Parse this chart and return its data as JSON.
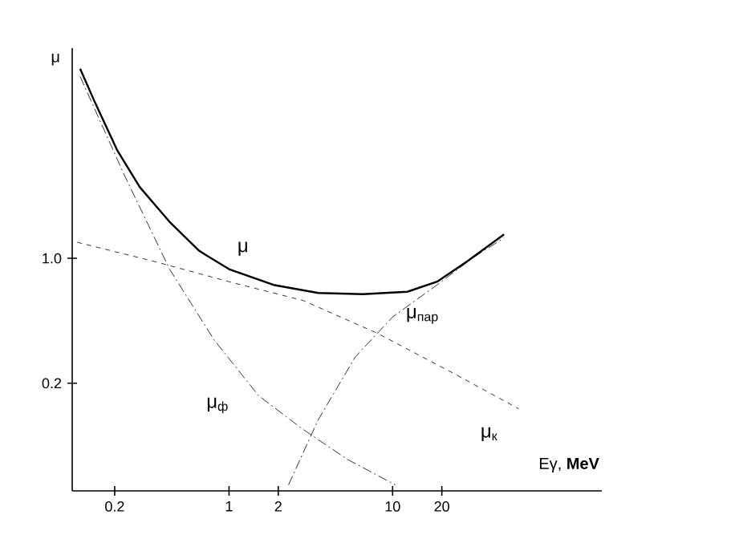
{
  "chart_data": {
    "type": "line",
    "xlabel": "Eγ, **MeV**",
    "ylabel": "μ",
    "log": "xy",
    "xlim": [
      0.11,
      190
    ],
    "ylim": [
      0.05,
      15
    ],
    "xticks": [
      0.2,
      1,
      2,
      10,
      20
    ],
    "yticks": [
      0.2,
      {
        "value": 1,
        "label": "1.0"
      }
    ],
    "series": [
      {
        "name": "μ",
        "color": "#000000",
        "line_style": "solid",
        "x": [
          0.123,
          0.152,
          0.208,
          0.285,
          0.433,
          0.658,
          1,
          1.87,
          3.51,
          6.58,
          12.3,
          18.7,
          28.5,
          48
        ],
        "values": [
          11.5,
          7.4,
          4.0,
          2.5,
          1.6,
          1.1,
          0.87,
          0.71,
          0.64,
          0.63,
          0.65,
          0.74,
          0.96,
          1.36
        ]
      },
      {
        "name": "μ$_{ф}$",
        "color": "#000000",
        "line_style": "dashdot",
        "x": [
          0.123,
          0.23,
          0.433,
          0.81,
          1.52,
          2.85,
          5.3,
          10.4
        ],
        "values": [
          10.4,
          2.9,
          0.87,
          0.35,
          0.17,
          0.11,
          0.075,
          0.054
        ]
      },
      {
        "name": "μ$_{к}$",
        "color": "#000000",
        "line_style": "dashed",
        "x": [
          0.118,
          0.35,
          1,
          2.85,
          8.1,
          23,
          59
        ],
        "values": [
          1.23,
          0.96,
          0.74,
          0.58,
          0.38,
          0.23,
          0.144
        ]
      },
      {
        "name": "μ$_{пар}$",
        "color": "#000000",
        "line_style": "dashdot",
        "x": [
          2.31,
          3.51,
          5.9,
          10,
          18.7,
          31.6,
          48
        ],
        "values": [
          0.054,
          0.125,
          0.28,
          0.47,
          0.71,
          1.02,
          1.3
        ]
      }
    ]
  }
}
